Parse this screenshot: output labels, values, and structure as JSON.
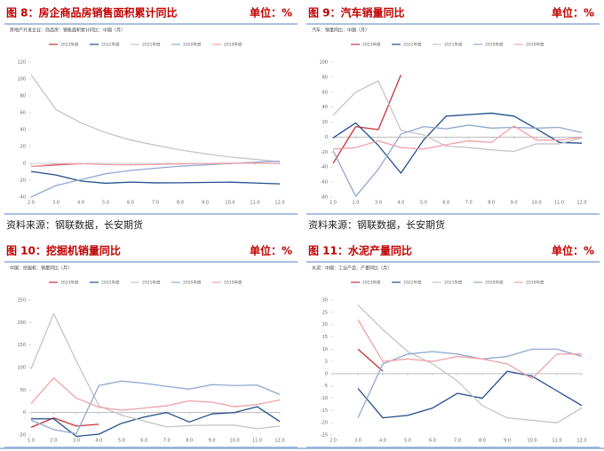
{
  "chart_data": [
    {
      "type": "line",
      "title": "图 8：房企商品房销售面积累计同比",
      "unit_label": "单位：%",
      "subtitle": "房地产开发企业：商品房：销售面积累计同比：中国（月）",
      "source": "资料来源：钢联数据，长安期货",
      "x": [
        2,
        3,
        4,
        5,
        6,
        7,
        8,
        9,
        10,
        11,
        12
      ],
      "xlim": [
        2,
        12
      ],
      "xticks": [
        {
          "value": 2,
          "label": "2.0"
        },
        {
          "value": 3,
          "label": "3.0"
        },
        {
          "value": 4,
          "label": "4.0"
        },
        {
          "value": 5,
          "label": "5.0"
        },
        {
          "value": 6,
          "label": "6.0"
        },
        {
          "value": 7,
          "label": "7.0"
        },
        {
          "value": 8,
          "label": "8.0"
        },
        {
          "value": 9,
          "label": "9.0"
        },
        {
          "value": 10,
          "label": "10.0"
        },
        {
          "value": 11,
          "label": "11.0"
        },
        {
          "value": 12,
          "label": "12.0"
        }
      ],
      "ylim": [
        -40,
        120
      ],
      "yticks": [
        -40,
        -20,
        0,
        20,
        40,
        60,
        80,
        100,
        120
      ],
      "series": [
        {
          "name": "2023年度",
          "color": "#c8303a",
          "values": [
            -3.6,
            -1.8,
            -0.4,
            null,
            null,
            null,
            null,
            null,
            null,
            null,
            null
          ]
        },
        {
          "name": "2022年度",
          "color": "#1f4e8c",
          "values": [
            -9.6,
            -13.8,
            -20.9,
            -23.6,
            -22.2,
            -23.1,
            -23,
            -22.6,
            -22.3,
            -23.3,
            -24.3
          ]
        },
        {
          "name": "2021年度",
          "color": "#c4c4c4",
          "values": [
            104.9,
            63.8,
            48.1,
            36.4,
            27.7,
            21.5,
            15.9,
            11.3,
            7.5,
            4.8,
            1.9
          ]
        },
        {
          "name": "2020年度",
          "color": "#8fa8d0",
          "values": [
            -39.9,
            -26.3,
            -19.3,
            -12.3,
            -8.4,
            -5.8,
            -3.3,
            -1.8,
            -0.2,
            1.3,
            2.6
          ]
        },
        {
          "name": "2019年度",
          "color": "#f0a0a8",
          "values": [
            -3.6,
            -0.9,
            -0.3,
            -1.6,
            -1.8,
            -1.3,
            -0.6,
            -0.1,
            0.1,
            0.2,
            -0.1
          ]
        }
      ]
    },
    {
      "type": "line",
      "title": "图 9：汽车销量同比",
      "unit_label": "单位：%",
      "subtitle": "汽车：销量同比：中国（月）",
      "source": "资料来源：钢联数据，长安期货",
      "x": [
        1,
        2,
        3,
        4,
        5,
        6,
        7,
        8,
        9,
        10,
        11,
        12
      ],
      "xlim": [
        1,
        12
      ],
      "xticks": [
        {
          "value": 1,
          "label": "1.0"
        },
        {
          "value": 2,
          "label": "2.0"
        },
        {
          "value": 3,
          "label": "3.0"
        },
        {
          "value": 4,
          "label": "4.0"
        },
        {
          "value": 5,
          "label": "5.0"
        },
        {
          "value": 6,
          "label": "6.0"
        },
        {
          "value": 7,
          "label": "7.0"
        },
        {
          "value": 8,
          "label": "8.0"
        },
        {
          "value": 9,
          "label": "9.0"
        },
        {
          "value": 10,
          "label": "10.0"
        },
        {
          "value": 11,
          "label": "11.0"
        },
        {
          "value": 12,
          "label": "12.0"
        }
      ],
      "ylim": [
        -80,
        100
      ],
      "yticks": [
        -80,
        -60,
        -40,
        -20,
        0,
        20,
        40,
        60,
        80,
        100
      ],
      "series": [
        {
          "name": "2023年度",
          "color": "#c8303a",
          "values": [
            -35,
            14,
            10,
            83,
            null,
            null,
            null,
            null,
            null,
            null,
            null,
            null
          ]
        },
        {
          "name": "2022年度",
          "color": "#1f4e8c",
          "values": [
            -1,
            19,
            -11,
            -48,
            -4,
            28,
            30,
            32,
            28,
            11,
            -7,
            -8
          ]
        },
        {
          "name": "2021年度",
          "color": "#c4c4c4",
          "values": [
            29,
            60,
            75,
            9,
            3,
            -12,
            -14,
            -17,
            -19,
            -9,
            -9,
            -1
          ]
        },
        {
          "name": "2020年度",
          "color": "#8fa8d0",
          "values": [
            -18,
            -79,
            -43,
            4,
            14,
            11,
            16,
            12,
            13,
            12,
            13,
            6
          ]
        },
        {
          "name": "2019年度",
          "color": "#f0a0a8",
          "values": [
            -16,
            -14,
            -5,
            -14,
            -16,
            -10,
            -5,
            -7,
            15,
            -4,
            -4,
            0
          ]
        }
      ]
    },
    {
      "type": "line",
      "title": "图 10：挖掘机销量同比",
      "unit_label": "单位：%",
      "subtitle": "中国：挖掘机：销量同比（月）",
      "x": [
        1,
        2,
        3,
        4,
        5,
        6,
        7,
        8,
        9,
        10,
        11,
        12
      ],
      "xlim": [
        1,
        12
      ],
      "xticks": [
        {
          "value": 1,
          "label": "1.0"
        },
        {
          "value": 2,
          "label": "2.0"
        },
        {
          "value": 3,
          "label": "3.0"
        },
        {
          "value": 4,
          "label": "4.0"
        },
        {
          "value": 5,
          "label": "5.0"
        },
        {
          "value": 6,
          "label": "6.0"
        },
        {
          "value": 7,
          "label": "7.0"
        },
        {
          "value": 8,
          "label": "8.0"
        },
        {
          "value": 9,
          "label": "9.0"
        },
        {
          "value": 10,
          "label": "10.0"
        },
        {
          "value": 11,
          "label": "11.0"
        },
        {
          "value": 12,
          "label": "12.0"
        }
      ],
      "ylim": [
        -50,
        250
      ],
      "yticks": [
        -50,
        0,
        50,
        100,
        150,
        200,
        250
      ],
      "series": [
        {
          "name": "2023年度",
          "color": "#c8303a",
          "values": [
            -33,
            -12,
            -30,
            -26,
            null,
            null,
            null,
            null,
            null,
            null,
            null,
            null
          ]
        },
        {
          "name": "2022年度",
          "color": "#1f4e8c",
          "values": [
            -14,
            -14,
            -53,
            -48,
            -24,
            -10,
            0,
            -21,
            -3,
            0,
            13,
            -20
          ]
        },
        {
          "name": "2021年度",
          "color": "#c4c4c4",
          "values": [
            97,
            220,
            115,
            15,
            -6,
            -19,
            -32,
            -29,
            -28,
            -28,
            -36,
            -30
          ]
        },
        {
          "name": "2020年度",
          "color": "#8fa8d0",
          "values": [
            -17,
            -38,
            -47,
            60,
            70,
            65,
            58,
            52,
            62,
            60,
            61,
            40
          ]
        },
        {
          "name": "2019年度",
          "color": "#f0a0a8",
          "values": [
            20,
            77,
            32,
            12,
            5,
            10,
            15,
            26,
            23,
            13,
            18,
            28
          ]
        }
      ]
    },
    {
      "type": "line",
      "title": "图 11：水泥产量同比",
      "unit_label": "单位：%",
      "subtitle": "水泥：中国：工业产品：产量同比（月）",
      "x": [
        2,
        3,
        4,
        5,
        6,
        7,
        8,
        9,
        10,
        11,
        12
      ],
      "xlim": [
        2,
        12
      ],
      "xticks": [
        {
          "value": 2,
          "label": "2.0"
        },
        {
          "value": 3,
          "label": "3.0"
        },
        {
          "value": 4,
          "label": "4.0"
        },
        {
          "value": 5,
          "label": "5.0"
        },
        {
          "value": 6,
          "label": "6.0"
        },
        {
          "value": 7,
          "label": "7.0"
        },
        {
          "value": 8,
          "label": "8.0"
        },
        {
          "value": 9,
          "label": "9.0"
        },
        {
          "value": 10,
          "label": "10.0"
        },
        {
          "value": 11,
          "label": "11.0"
        },
        {
          "value": 12,
          "label": "12.0"
        }
      ],
      "ylim": [
        -25,
        30
      ],
      "yticks": [
        -25,
        -20,
        -15,
        -10,
        -5,
        0,
        5,
        10,
        15,
        20,
        25,
        30
      ],
      "series": [
        {
          "name": "2023年度",
          "color": "#c8303a",
          "values": [
            null,
            10,
            1,
            null,
            null,
            null,
            null,
            null,
            null,
            null,
            null
          ]
        },
        {
          "name": "2022年度",
          "color": "#1f4e8c",
          "values": [
            null,
            -6,
            -18,
            -17,
            -14,
            -8,
            -10,
            1,
            -1,
            -7,
            -13
          ]
        },
        {
          "name": "2021年度",
          "color": "#c4c4c4",
          "values": [
            null,
            28,
            18,
            9,
            4,
            -3,
            -13,
            -18,
            -19,
            -20,
            -14
          ]
        },
        {
          "name": "2020年度",
          "color": "#8fa8d0",
          "values": [
            null,
            -18,
            4,
            8,
            9,
            8,
            6,
            7,
            10,
            10,
            7
          ]
        },
        {
          "name": "2019年度",
          "color": "#f0a0a8",
          "values": [
            null,
            22,
            5,
            6,
            5,
            7,
            6,
            4,
            -2,
            8,
            8
          ]
        }
      ]
    }
  ]
}
